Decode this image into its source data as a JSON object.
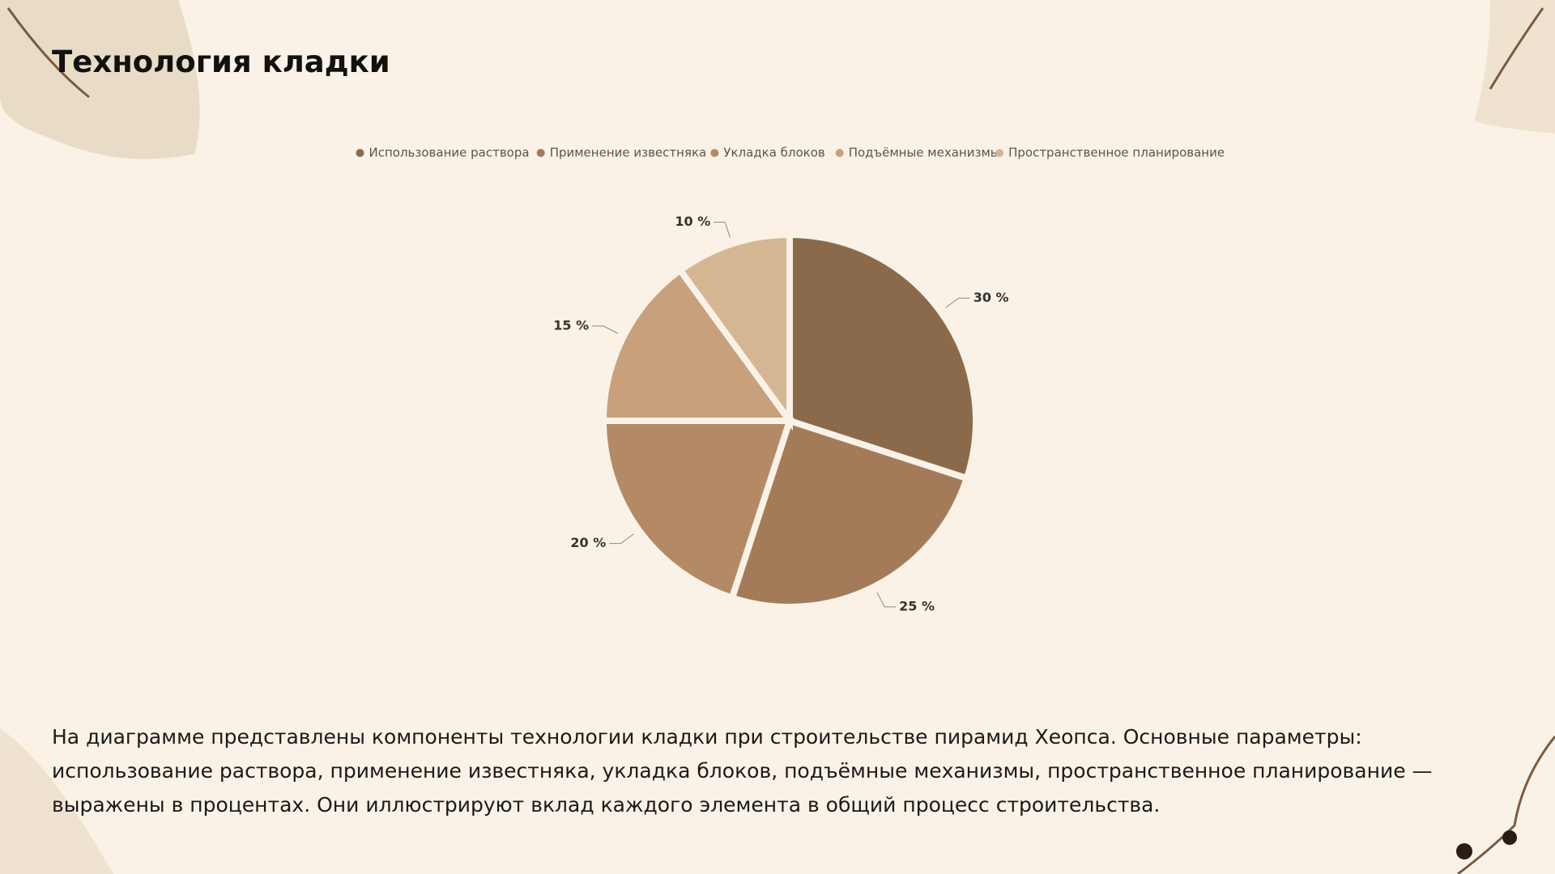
{
  "chart_data": {
    "type": "pie",
    "title": "Технология кладки",
    "categories": [
      "Использование раствора",
      "Применение известняка",
      "Укладка блоков",
      "Подъёмные механизмы",
      "Пространственное планирование"
    ],
    "values": [
      30,
      25,
      20,
      15,
      10
    ],
    "value_labels": [
      "30 %",
      "25 %",
      "20 %",
      "15 %",
      "10 %"
    ],
    "colors": [
      "#8b6a4b",
      "#a47b59",
      "#b48a66",
      "#c8a07c",
      "#d5b693"
    ],
    "legend": "top"
  },
  "description": "На диаграмме представлены компоненты технологии кладки при строительстве пирамид Хеопса. Основные параметры: использование раствора, применение известняка, укладка блоков, подъёмные механизмы, пространственное планирование — выражены в процентах. Они иллюстрируют вклад каждого элемента в общий процесс строительства."
}
